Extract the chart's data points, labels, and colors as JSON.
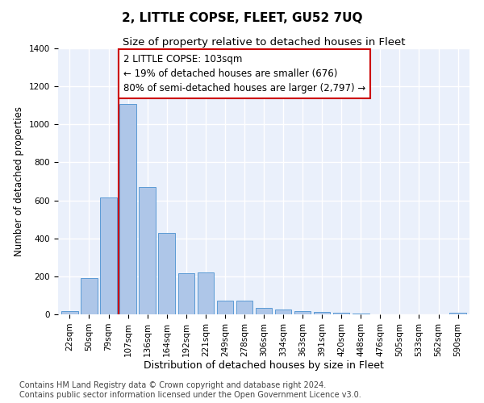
{
  "title": "2, LITTLE COPSE, FLEET, GU52 7UQ",
  "subtitle": "Size of property relative to detached houses in Fleet",
  "xlabel": "Distribution of detached houses by size in Fleet",
  "ylabel": "Number of detached properties",
  "categories": [
    "22sqm",
    "50sqm",
    "79sqm",
    "107sqm",
    "136sqm",
    "164sqm",
    "192sqm",
    "221sqm",
    "249sqm",
    "278sqm",
    "306sqm",
    "334sqm",
    "363sqm",
    "391sqm",
    "420sqm",
    "448sqm",
    "476sqm",
    "505sqm",
    "533sqm",
    "562sqm",
    "590sqm"
  ],
  "values": [
    18,
    193,
    617,
    1107,
    670,
    428,
    218,
    220,
    72,
    72,
    33,
    27,
    18,
    12,
    8,
    3,
    2,
    0,
    0,
    0,
    8
  ],
  "bar_color": "#aec6e8",
  "bar_edge_color": "#5b9bd5",
  "background_color": "#eaf0fb",
  "grid_color": "#ffffff",
  "vline_color": "#cc0000",
  "annotation_text": "2 LITTLE COPSE: 103sqm\n← 19% of detached houses are smaller (676)\n80% of semi-detached houses are larger (2,797) →",
  "annotation_box_color": "#cc0000",
  "ylim": [
    0,
    1400
  ],
  "yticks": [
    0,
    200,
    400,
    600,
    800,
    1000,
    1200,
    1400
  ],
  "footer_line1": "Contains HM Land Registry data © Crown copyright and database right 2024.",
  "footer_line2": "Contains public sector information licensed under the Open Government Licence v3.0.",
  "title_fontsize": 11,
  "subtitle_fontsize": 9.5,
  "xlabel_fontsize": 9,
  "ylabel_fontsize": 8.5,
  "tick_fontsize": 7.5,
  "annotation_fontsize": 8.5,
  "footer_fontsize": 7
}
